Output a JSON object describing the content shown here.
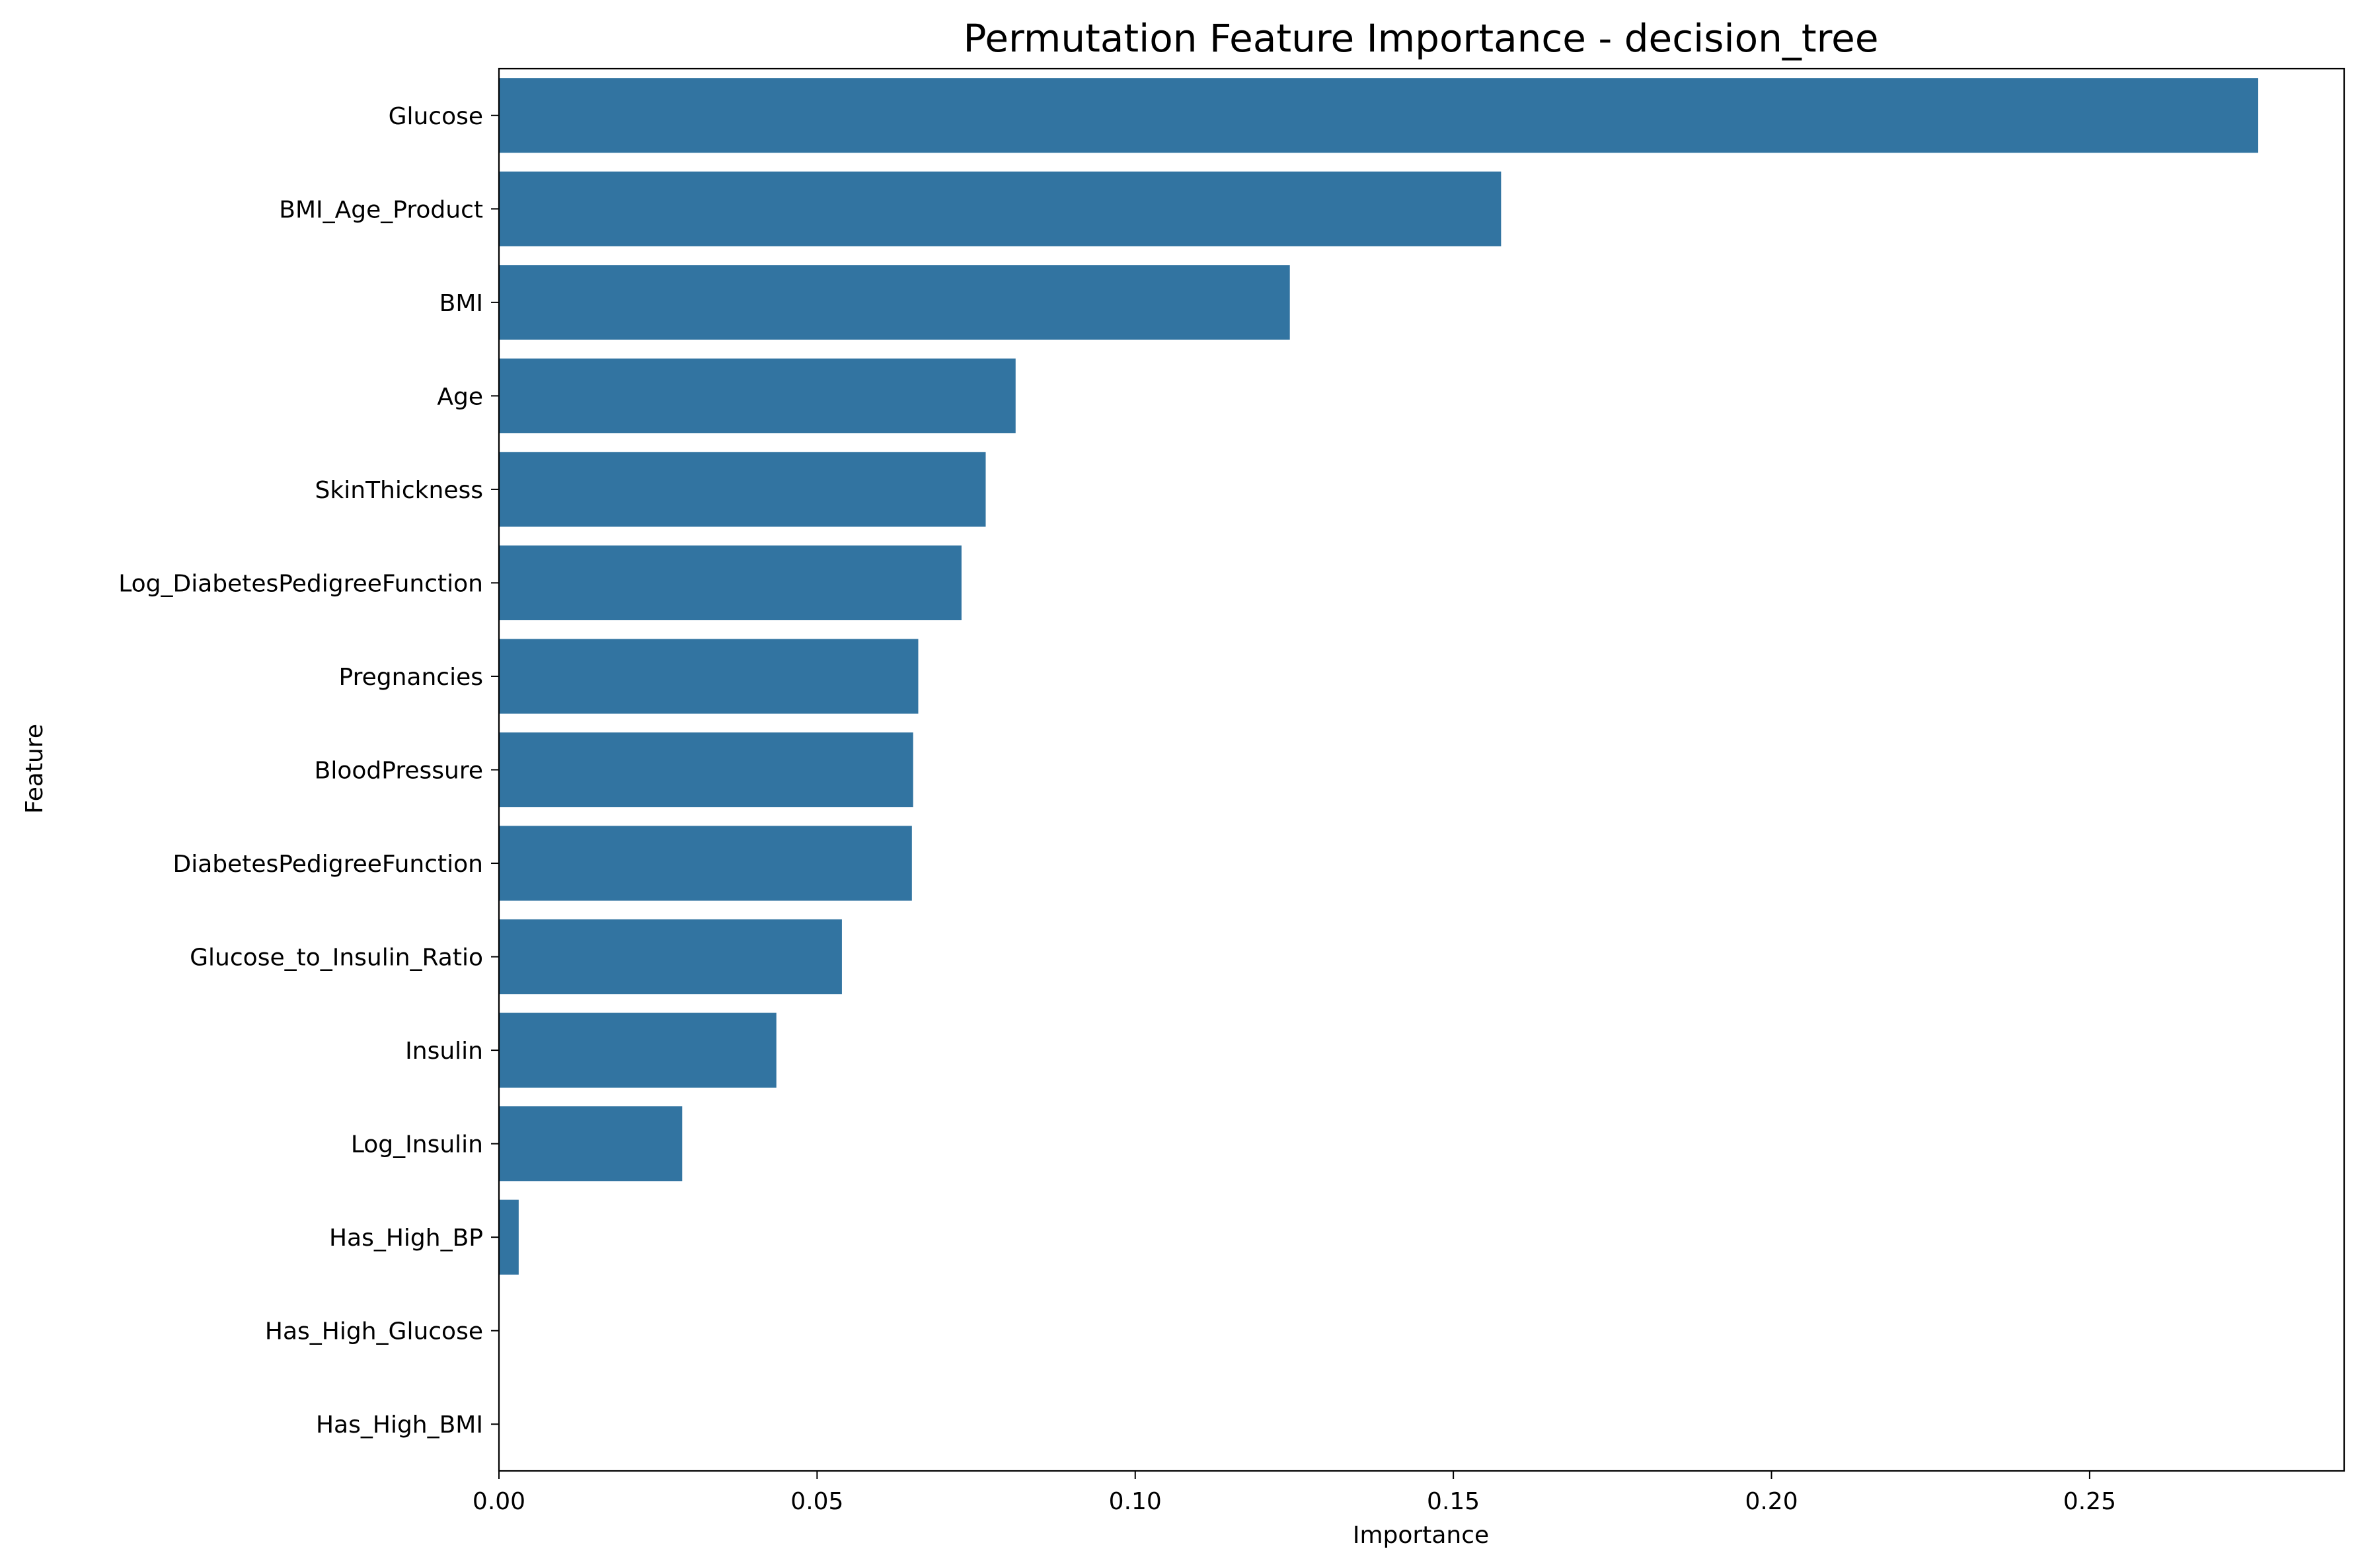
{
  "chart_data": {
    "type": "bar",
    "orientation": "horizontal",
    "title": "Permutation Feature Importance - decision_tree",
    "xlabel": "Importance",
    "ylabel": "Feature",
    "categories": [
      "Glucose",
      "BMI_Age_Product",
      "BMI",
      "Age",
      "SkinThickness",
      "Log_DiabetesPedigreeFunction",
      "Pregnancies",
      "BloodPressure",
      "DiabetesPedigreeFunction",
      "Glucose_to_Insulin_Ratio",
      "Insulin",
      "Log_Insulin",
      "Has_High_BP",
      "Has_High_Glucose",
      "Has_High_BMI"
    ],
    "values": [
      0.2765,
      0.1575,
      0.1243,
      0.0812,
      0.0765,
      0.0727,
      0.0659,
      0.0651,
      0.0649,
      0.0539,
      0.0436,
      0.0288,
      0.0031,
      0.0,
      0.0
    ],
    "xlim": [
      0,
      0.29
    ],
    "xticks": [
      "0.00",
      "0.05",
      "0.10",
      "0.15",
      "0.20",
      "0.25"
    ],
    "xtick_values": [
      0,
      0.05,
      0.1,
      0.15,
      0.2,
      0.25
    ],
    "bar_color": "#3274a1",
    "grid": false,
    "legend": "none"
  }
}
